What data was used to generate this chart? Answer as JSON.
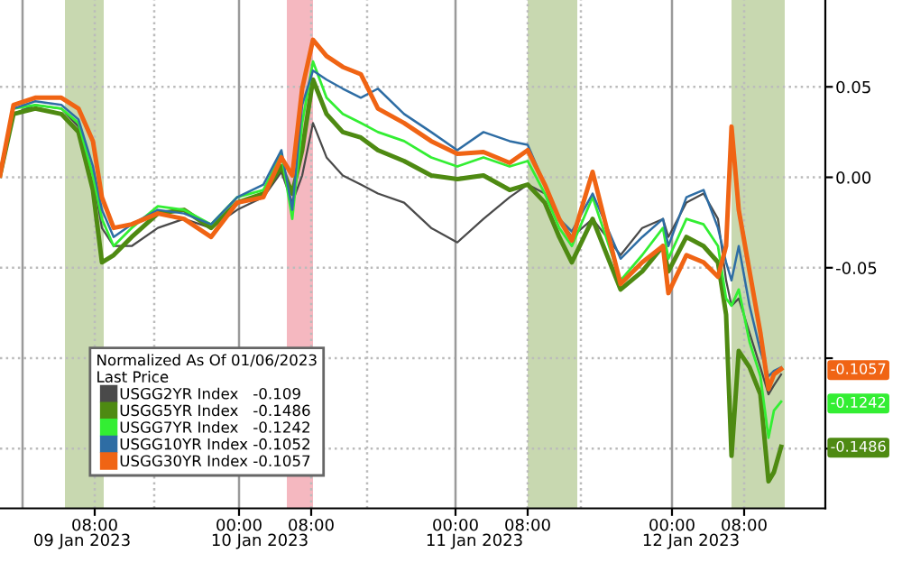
{
  "chart_data": {
    "type": "line",
    "legend_title": "Normalized As Of 01/06/2023\nLast Price",
    "x": [
      "2023-01-08T21:30",
      "2023-01-08T23:00",
      "2023-01-09T01:24",
      "2023-01-09T04:18",
      "2023-01-09T06:12",
      "2023-01-09T07:48",
      "2023-01-09T08:48",
      "2023-01-09T10:06",
      "2023-01-09T12:06",
      "2023-01-09T15:00",
      "2023-01-09T17:54",
      "2023-01-09T20:54",
      "2023-01-09T23:48",
      "2023-01-10T02:42",
      "2023-01-10T04:42",
      "2023-01-10T05:54",
      "2023-01-10T07:00",
      "2023-01-10T08:12",
      "2023-01-10T09:42",
      "2023-01-10T11:30",
      "2023-01-10T13:30",
      "2023-01-10T15:24",
      "2023-01-10T18:18",
      "2023-01-10T21:18",
      "2023-01-11T00:12",
      "2023-01-11T03:06",
      "2023-01-11T06:00",
      "2023-01-11T08:00",
      "2023-01-11T09:54",
      "2023-01-11T11:30",
      "2023-01-11T12:54",
      "2023-01-11T15:12",
      "2023-01-11T18:18",
      "2023-01-11T20:42",
      "2023-01-11T23:00",
      "2023-01-11T23:36",
      "2023-01-12T01:36",
      "2023-01-12T03:30",
      "2023-01-12T05:06",
      "2023-01-12T06:00",
      "2023-01-12T06:36",
      "2023-01-12T07:24",
      "2023-01-12T08:36",
      "2023-01-12T09:48",
      "2023-01-12T10:42",
      "2023-01-12T11:18",
      "2023-01-12T12:06"
    ],
    "series": [
      {
        "name": "USGG2YR Index   -0.109",
        "color": "#4a4a4a",
        "values": [
          0.001,
          0.035,
          0.04,
          0.038,
          0.028,
          0.001,
          -0.028,
          -0.038,
          -0.038,
          -0.028,
          -0.023,
          -0.028,
          -0.018,
          -0.011,
          0.003,
          -0.014,
          0.001,
          0.03,
          0.011,
          0.001,
          -0.004,
          -0.009,
          -0.014,
          -0.028,
          -0.036,
          -0.023,
          -0.011,
          -0.004,
          -0.009,
          -0.023,
          -0.033,
          -0.023,
          -0.043,
          -0.028,
          -0.023,
          -0.033,
          -0.014,
          -0.009,
          -0.023,
          -0.057,
          -0.071,
          -0.067,
          -0.086,
          -0.105,
          -0.12,
          -0.115,
          -0.109
        ]
      },
      {
        "name": "USGG5YR Index   -0.1486",
        "color": "#4e8a12",
        "values": [
          0.001,
          0.035,
          0.038,
          0.035,
          0.025,
          -0.007,
          -0.047,
          -0.043,
          -0.033,
          -0.02,
          -0.018,
          -0.028,
          -0.014,
          -0.009,
          0.006,
          -0.009,
          0.015,
          0.054,
          0.035,
          0.025,
          0.022,
          0.015,
          0.009,
          0.001,
          -0.001,
          0.001,
          -0.007,
          -0.004,
          -0.014,
          -0.033,
          -0.047,
          -0.023,
          -0.062,
          -0.052,
          -0.038,
          -0.052,
          -0.033,
          -0.038,
          -0.047,
          -0.076,
          -0.154,
          -0.096,
          -0.105,
          -0.12,
          -0.168,
          -0.163,
          -0.149
        ]
      },
      {
        "name": "USGG7YR Index   -0.1242",
        "color": "#33ee33",
        "values": [
          0.001,
          0.038,
          0.04,
          0.038,
          0.03,
          0.001,
          -0.023,
          -0.038,
          -0.028,
          -0.016,
          -0.018,
          -0.026,
          -0.011,
          -0.007,
          0.013,
          -0.023,
          0.03,
          0.064,
          0.044,
          0.035,
          0.03,
          0.025,
          0.02,
          0.011,
          0.006,
          0.011,
          0.006,
          0.009,
          -0.009,
          -0.028,
          -0.038,
          -0.011,
          -0.057,
          -0.043,
          -0.028,
          -0.045,
          -0.023,
          -0.026,
          -0.038,
          -0.067,
          -0.071,
          -0.062,
          -0.091,
          -0.11,
          -0.144,
          -0.129,
          -0.124
        ]
      },
      {
        "name": "USGG10YR Index -0.1052",
        "color": "#2e6da4",
        "values": [
          0.001,
          0.038,
          0.042,
          0.04,
          0.032,
          0.006,
          -0.018,
          -0.033,
          -0.026,
          -0.018,
          -0.02,
          -0.026,
          -0.011,
          -0.004,
          0.015,
          -0.018,
          0.04,
          0.059,
          0.054,
          0.049,
          0.044,
          0.049,
          0.035,
          0.025,
          0.015,
          0.025,
          0.02,
          0.018,
          -0.004,
          -0.023,
          -0.03,
          -0.009,
          -0.045,
          -0.033,
          -0.023,
          -0.038,
          -0.011,
          -0.007,
          -0.028,
          -0.047,
          -0.057,
          -0.038,
          -0.071,
          -0.096,
          -0.11,
          -0.107,
          -0.105
        ]
      },
      {
        "name": "USGG30YR Index -0.1057",
        "color": "#f06414",
        "values": [
          0.001,
          0.04,
          0.044,
          0.044,
          0.038,
          0.02,
          -0.011,
          -0.028,
          -0.026,
          -0.02,
          -0.023,
          -0.033,
          -0.014,
          -0.011,
          0.011,
          0.001,
          0.049,
          0.076,
          0.067,
          0.061,
          0.057,
          0.038,
          0.03,
          0.02,
          0.013,
          0.014,
          0.008,
          0.015,
          -0.004,
          -0.023,
          -0.035,
          0.003,
          -0.059,
          -0.047,
          -0.038,
          -0.064,
          -0.043,
          -0.047,
          -0.055,
          -0.038,
          0.028,
          -0.018,
          -0.052,
          -0.086,
          -0.117,
          -0.109,
          -0.106
        ]
      }
    ],
    "xlim": [
      "2023-01-08T21:30",
      "2023-01-12T17:00"
    ],
    "xticks": [
      {
        "value": "2023-01-09T08:00",
        "label": "08:00"
      },
      {
        "value": "2023-01-10T00:00",
        "label": "00:00"
      },
      {
        "value": "2023-01-10T08:00",
        "label": "08:00"
      },
      {
        "value": "2023-01-11T00:00",
        "label": "00:00"
      },
      {
        "value": "2023-01-11T08:00",
        "label": "08:00"
      },
      {
        "value": "2023-01-12T00:00",
        "label": "00:00"
      },
      {
        "value": "2023-01-12T08:00",
        "label": "08:00"
      }
    ],
    "x2lim": [
      "2023-01-08T21:30",
      "2023-01-12T17:00"
    ],
    "x2ticks": [
      {
        "value": "2023-01-09T06:36",
        "label": "09 Jan 2023"
      },
      {
        "value": "2023-01-10T02:18",
        "label": "10 Jan 2023"
      },
      {
        "value": "2023-01-11T02:06",
        "label": "11 Jan 2023"
      },
      {
        "value": "2023-01-12T02:06",
        "label": "12 Jan 2023"
      }
    ],
    "ylim": [
      -0.183,
      0.098
    ],
    "yticks": [
      {
        "value": 0.05,
        "label": "0.05"
      },
      {
        "value": 0.0,
        "label": "0.00"
      },
      {
        "value": -0.05,
        "label": "-0.05"
      },
      {
        "value": -0.1,
        "label": null
      },
      {
        "value": -0.15,
        "label": null
      }
    ],
    "grid": "y",
    "legend": "bottom left",
    "line_style": "solid",
    "ref_lines": [
      {
        "axis": "x",
        "value": "2023-01-09T00:00",
        "color": "#9a9a9a",
        "line_style": "solid"
      },
      {
        "axis": "x",
        "value": "2023-01-10T00:00",
        "color": "#9a9a9a",
        "line_style": "solid"
      },
      {
        "axis": "x",
        "value": "2023-01-11T00:00",
        "color": "#9a9a9a",
        "line_style": "solid"
      },
      {
        "axis": "x",
        "value": "2023-01-12T00:00",
        "color": "#9a9a9a",
        "line_style": "solid"
      },
      {
        "axis": "x",
        "value": "2023-01-09T08:00",
        "color": "#bbbbbb",
        "line_style": "dotted"
      },
      {
        "axis": "x",
        "value": "2023-01-09T14:36",
        "color": "#bbbbbb",
        "line_style": "dotted"
      },
      {
        "axis": "x",
        "value": "2023-01-10T08:00",
        "color": "#bbbbbb",
        "line_style": "dotted"
      },
      {
        "axis": "x",
        "value": "2023-01-10T14:12",
        "color": "#bbbbbb",
        "line_style": "dotted"
      },
      {
        "axis": "x",
        "value": "2023-01-11T08:00",
        "color": "#bbbbbb",
        "line_style": "dotted"
      },
      {
        "axis": "x",
        "value": "2023-01-11T13:54",
        "color": "#bbbbbb",
        "line_style": "dotted"
      },
      {
        "axis": "x",
        "value": "2023-01-12T08:00",
        "color": "#bbbbbb",
        "line_style": "dotted"
      }
    ],
    "bands": [
      {
        "axis": "x",
        "from": "2023-01-09T04:42",
        "to": "2023-01-09T09:00",
        "color": "#c8d8b0"
      },
      {
        "axis": "x",
        "from": "2023-01-10T05:18",
        "to": "2023-01-10T08:12",
        "color": "#f5b8c0"
      },
      {
        "axis": "x",
        "from": "2023-01-11T08:00",
        "to": "2023-01-11T13:30",
        "color": "#c8d8b0"
      },
      {
        "axis": "x",
        "from": "2023-01-12T06:36",
        "to": "2023-01-12T12:30",
        "color": "#c8d8b0"
      }
    ],
    "y2lim": [
      -0.183,
      0.098
    ],
    "y2ticks": [
      {
        "value": -0.1057,
        "label": "-0.1057"
      },
      {
        "value": -0.1242,
        "label": "-0.1242"
      },
      {
        "value": -0.1486,
        "label": "-0.1486"
      }
    ]
  }
}
